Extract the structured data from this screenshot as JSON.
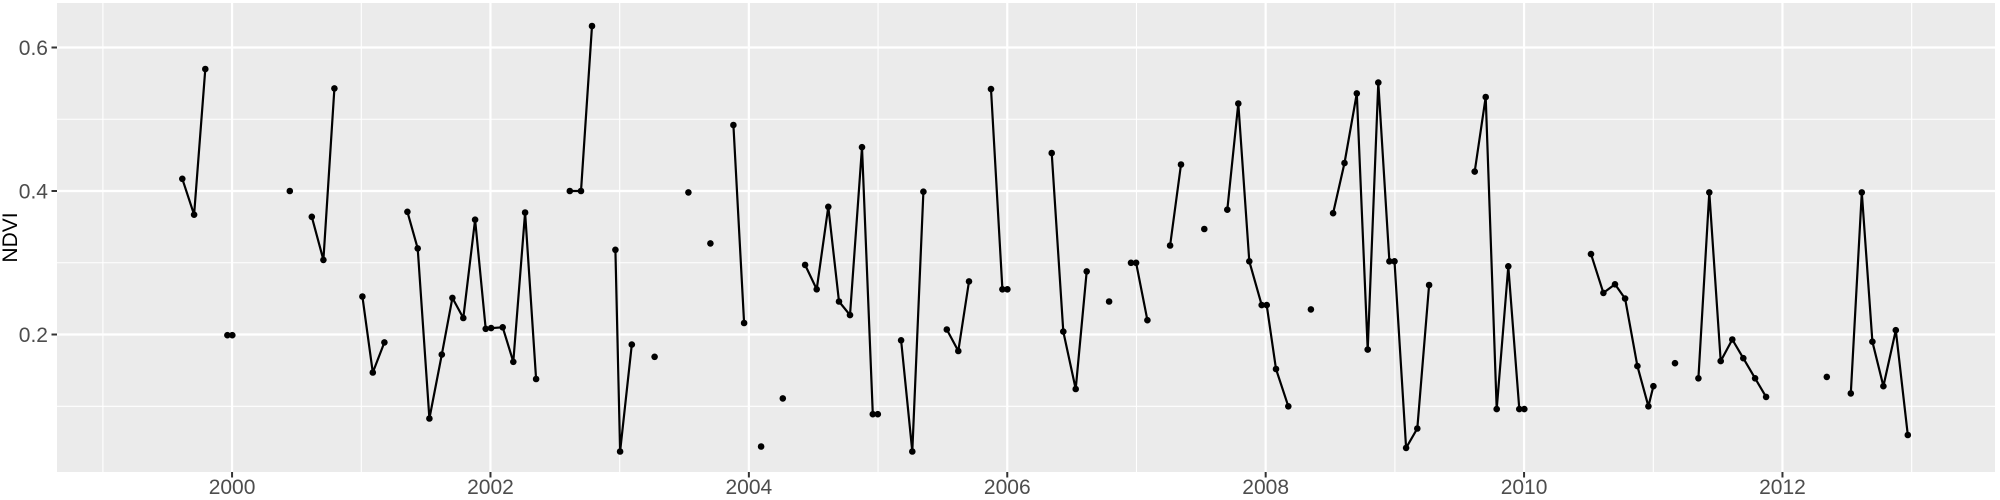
{
  "chart_data": {
    "type": "line",
    "title": "",
    "xlabel": "",
    "ylabel": "NDVI",
    "xlim": [
      1998.645,
      2013.645
    ],
    "ylim": [
      0.0084,
      0.662
    ],
    "x_major_ticks": [
      2000,
      2002,
      2004,
      2006,
      2008,
      2010,
      2012
    ],
    "x_tick_labels": [
      "2000",
      "2002",
      "2004",
      "2006",
      "2008",
      "2010",
      "2012"
    ],
    "x_minor_ticks": [
      1999,
      2001,
      2003,
      2005,
      2007,
      2009,
      2011,
      2013
    ],
    "y_major_ticks": [
      0.2,
      0.4,
      0.6
    ],
    "y_tick_labels": [
      "0.2",
      "0.4",
      "0.6"
    ],
    "y_minor_ticks": [
      0.1,
      0.3,
      0.5
    ],
    "grid": {
      "major": true,
      "minor": true
    },
    "legend_position": "none",
    "style": {
      "panel_bg": "#EBEBEB",
      "grid_major_color": "#FFFFFF",
      "grid_minor_color": "#FFFFFF",
      "line_color": "#000000",
      "point_color": "#000000",
      "tick_mark_color": "#333333",
      "tick_label_color": "#4D4D4D",
      "axis_title_color": "#000000",
      "outer_bg": "#FFFFFF"
    },
    "series": [
      {
        "name": "NDVI",
        "segments": [
          [
            [
              1999.615,
              0.417
            ],
            [
              1999.706,
              0.367
            ],
            [
              1999.793,
              0.57
            ]
          ],
          [
            [
              1999.964,
              0.199
            ],
            [
              2000.002,
              0.199
            ]
          ],
          [
            [
              2000.447,
              0.4
            ]
          ],
          [
            [
              2000.617,
              0.364
            ],
            [
              2000.707,
              0.304
            ],
            [
              2000.792,
              0.543
            ]
          ],
          [
            [
              2001.009,
              0.253
            ],
            [
              2001.089,
              0.147
            ],
            [
              2001.179,
              0.189
            ]
          ],
          [
            [
              2001.357,
              0.371
            ],
            [
              2001.437,
              0.32
            ],
            [
              2001.527,
              0.083
            ],
            [
              2001.623,
              0.172
            ],
            [
              2001.705,
              0.251
            ],
            [
              2001.79,
              0.223
            ],
            [
              2001.881,
              0.36
            ],
            [
              2001.963,
              0.208
            ],
            [
              2002.005,
              0.209
            ],
            [
              2002.095,
              0.21
            ],
            [
              2002.177,
              0.162
            ],
            [
              2002.268,
              0.37
            ],
            [
              2002.353,
              0.138
            ]
          ],
          [
            [
              2002.614,
              0.4
            ],
            [
              2002.701,
              0.4
            ],
            [
              2002.786,
              0.63
            ]
          ],
          [
            [
              2002.967,
              0.318
            ],
            [
              2003.003,
              0.037
            ],
            [
              2003.094,
              0.186
            ]
          ],
          [
            [
              2003.27,
              0.169
            ]
          ],
          [
            [
              2003.532,
              0.398
            ]
          ],
          [
            [
              2003.702,
              0.327
            ]
          ],
          [
            [
              2003.88,
              0.492
            ],
            [
              2003.963,
              0.216
            ]
          ],
          [
            [
              2004.095,
              0.044
            ]
          ],
          [
            [
              2004.263,
              0.111
            ]
          ],
          [
            [
              2004.435,
              0.297
            ],
            [
              2004.525,
              0.263
            ],
            [
              2004.615,
              0.378
            ],
            [
              2004.698,
              0.246
            ],
            [
              2004.783,
              0.227
            ],
            [
              2004.876,
              0.461
            ],
            [
              2004.959,
              0.089
            ],
            [
              2004.998,
              0.089
            ]
          ],
          [
            [
              2005.178,
              0.192
            ],
            [
              2005.265,
              0.037
            ],
            [
              2005.351,
              0.399
            ]
          ],
          [
            [
              2005.532,
              0.207
            ],
            [
              2005.621,
              0.177
            ],
            [
              2005.704,
              0.274
            ]
          ],
          [
            [
              2005.874,
              0.542
            ],
            [
              2005.962,
              0.263
            ],
            [
              2006.001,
              0.263
            ]
          ],
          [
            [
              2006.344,
              0.453
            ],
            [
              2006.434,
              0.204
            ],
            [
              2006.53,
              0.124
            ],
            [
              2006.615,
              0.288
            ]
          ],
          [
            [
              2006.788,
              0.246
            ]
          ],
          [
            [
              2006.958,
              0.3
            ],
            [
              2006.997,
              0.3
            ],
            [
              2007.085,
              0.22
            ]
          ],
          [
            [
              2007.26,
              0.324
            ],
            [
              2007.345,
              0.437
            ]
          ],
          [
            [
              2007.525,
              0.347
            ]
          ],
          [
            [
              2007.703,
              0.374
            ],
            [
              2007.788,
              0.522
            ],
            [
              2007.873,
              0.302
            ],
            [
              2007.969,
              0.241
            ],
            [
              2008.008,
              0.241
            ],
            [
              2008.08,
              0.152
            ],
            [
              2008.175,
              0.1
            ]
          ],
          [
            [
              2008.35,
              0.235
            ]
          ],
          [
            [
              2008.522,
              0.369
            ],
            [
              2008.61,
              0.439
            ],
            [
              2008.705,
              0.536
            ],
            [
              2008.79,
              0.179
            ],
            [
              2008.872,
              0.551
            ],
            [
              2008.958,
              0.302
            ],
            [
              2008.997,
              0.302
            ],
            [
              2009.087,
              0.042
            ],
            [
              2009.174,
              0.069
            ],
            [
              2009.265,
              0.269
            ]
          ],
          [
            [
              2009.618,
              0.427
            ],
            [
              2009.703,
              0.531
            ],
            [
              2009.788,
              0.096
            ],
            [
              2009.878,
              0.295
            ],
            [
              2009.963,
              0.096
            ],
            [
              2010.002,
              0.096
            ]
          ],
          [
            [
              2010.518,
              0.312
            ],
            [
              2010.614,
              0.258
            ],
            [
              2010.704,
              0.27
            ],
            [
              2010.782,
              0.25
            ],
            [
              2010.877,
              0.156
            ],
            [
              2010.962,
              0.1
            ],
            [
              2011.001,
              0.128
            ]
          ],
          [
            [
              2011.168,
              0.16
            ]
          ],
          [
            [
              2011.349,
              0.139
            ],
            [
              2011.434,
              0.398
            ],
            [
              2011.522,
              0.163
            ],
            [
              2011.612,
              0.193
            ],
            [
              2011.697,
              0.167
            ],
            [
              2011.788,
              0.139
            ],
            [
              2011.873,
              0.113
            ]
          ],
          [
            [
              2012.343,
              0.141
            ]
          ],
          [
            [
              2012.529,
              0.118
            ],
            [
              2012.614,
              0.398
            ],
            [
              2012.696,
              0.19
            ],
            [
              2012.781,
              0.128
            ],
            [
              2012.877,
              0.206
            ],
            [
              2012.97,
              0.06
            ]
          ]
        ]
      }
    ]
  }
}
